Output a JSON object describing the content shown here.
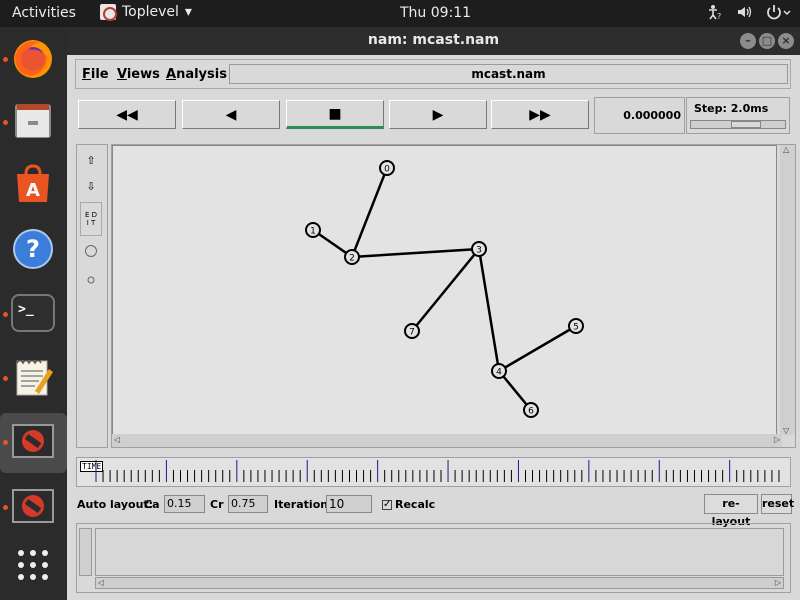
{
  "topbar": {
    "activities": "Activities",
    "app_menu": "Toplevel",
    "app_menu_arrow": "▾",
    "clock": "Thu 09:11",
    "sys_icons": [
      "accessibility-icon",
      "volume-icon",
      "power-icon"
    ]
  },
  "dock": {
    "items": [
      {
        "name": "firefox",
        "icon": "firefox-icon",
        "running": true
      },
      {
        "name": "files",
        "icon": "files-icon",
        "running": true
      },
      {
        "name": "software",
        "icon": "software-center-icon",
        "running": false
      },
      {
        "name": "help",
        "icon": "help-icon",
        "running": false
      },
      {
        "name": "terminal",
        "icon": "terminal-icon",
        "running": true
      },
      {
        "name": "text-editor",
        "icon": "text-editor-icon",
        "running": true
      },
      {
        "name": "nam-window-1",
        "icon": "no-entry-icon",
        "running": true,
        "active": true
      },
      {
        "name": "nam-window-2",
        "icon": "no-entry-icon",
        "running": true
      },
      {
        "name": "app-grid",
        "icon": "app-grid-icon",
        "running": false
      }
    ],
    "help_glyph": "?",
    "terminal_glyph": ">_"
  },
  "window": {
    "title": "nam: mcast.nam",
    "menu": {
      "file_u": "F",
      "file_rest": "ile",
      "views_u": "V",
      "views_rest": "iews",
      "analysis_u": "A",
      "analysis_rest": "nalysis"
    },
    "filename": "mcast.nam",
    "controls": {
      "rewind": "◀◀",
      "back": "◀",
      "stop": "■",
      "play": "▶",
      "fast_forward": "▶▶"
    },
    "time_value": "0.000000",
    "step_label": "Step: 2.0ms",
    "tools": {
      "zoom_in": "⇧",
      "zoom_out": "⇩",
      "edit": [
        "E D",
        "I T"
      ]
    },
    "timeline_label": "TIME",
    "auto_layout": {
      "label": "Auto layout:",
      "ca_label": "Ca",
      "ca_value": "0.15",
      "cr_label": "Cr",
      "cr_value": "0.75",
      "iterations_label": "Iterations",
      "iterations_value": "10",
      "recalc_label": "Recalc",
      "recalc_checked": true,
      "relayout_button": "re-layout",
      "reset_button": "reset"
    }
  },
  "network": {
    "nodes": [
      {
        "id": "0"
      },
      {
        "id": "1"
      },
      {
        "id": "2"
      },
      {
        "id": "3"
      },
      {
        "id": "4"
      },
      {
        "id": "5"
      },
      {
        "id": "6"
      },
      {
        "id": "7"
      }
    ],
    "links": [
      [
        "0",
        "2"
      ],
      [
        "1",
        "2"
      ],
      [
        "2",
        "3"
      ],
      [
        "3",
        "7"
      ],
      [
        "3",
        "4"
      ],
      [
        "4",
        "5"
      ],
      [
        "4",
        "6"
      ]
    ]
  }
}
